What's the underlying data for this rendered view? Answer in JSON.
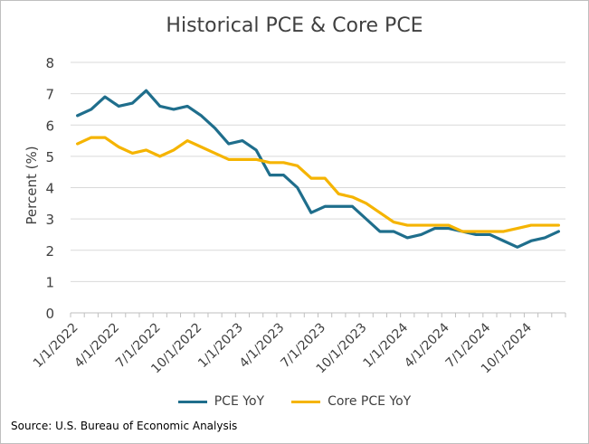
{
  "chart_data": {
    "type": "line",
    "title": "Historical PCE & Core PCE",
    "xlabel": "",
    "ylabel": "Percent (%)",
    "ylim": [
      0,
      8
    ],
    "yticks": [
      "0",
      "1",
      "2",
      "3",
      "4",
      "5",
      "6",
      "7",
      "8"
    ],
    "x_tick_labels": [
      "1/1/2022",
      "4/1/2022",
      "7/1/2022",
      "10/1/2022",
      "1/1/2023",
      "4/1/2023",
      "7/1/2023",
      "10/1/2023",
      "1/1/2024",
      "4/1/2024",
      "7/1/2024",
      "10/1/2024"
    ],
    "x_tick_month_index": [
      0,
      3,
      6,
      9,
      12,
      15,
      18,
      21,
      24,
      27,
      30,
      33
    ],
    "months": 36,
    "grid": true,
    "legend_position": "bottom",
    "series": [
      {
        "name": "PCE YoY",
        "color": "#1f6e8c",
        "values": [
          6.3,
          6.5,
          6.9,
          6.6,
          6.7,
          7.1,
          6.6,
          6.5,
          6.6,
          6.3,
          5.9,
          5.4,
          5.5,
          5.2,
          4.4,
          4.4,
          4.0,
          3.2,
          3.4,
          3.4,
          3.4,
          3.0,
          2.6,
          2.6,
          2.4,
          2.5,
          2.7,
          2.7,
          2.6,
          2.5,
          2.5,
          2.3,
          2.1,
          2.3,
          2.4,
          2.6
        ]
      },
      {
        "name": "Core PCE YoY",
        "color": "#f5b400",
        "values": [
          5.4,
          5.6,
          5.6,
          5.3,
          5.1,
          5.2,
          5.0,
          5.2,
          5.5,
          5.3,
          5.1,
          4.9,
          4.9,
          4.9,
          4.8,
          4.8,
          4.7,
          4.3,
          4.3,
          3.8,
          3.7,
          3.5,
          3.2,
          2.9,
          2.8,
          2.8,
          2.8,
          2.8,
          2.6,
          2.6,
          2.6,
          2.6,
          2.7,
          2.8,
          2.8,
          2.8
        ]
      }
    ]
  },
  "source": "Source: U.S. Bureau of Economic Analysis"
}
